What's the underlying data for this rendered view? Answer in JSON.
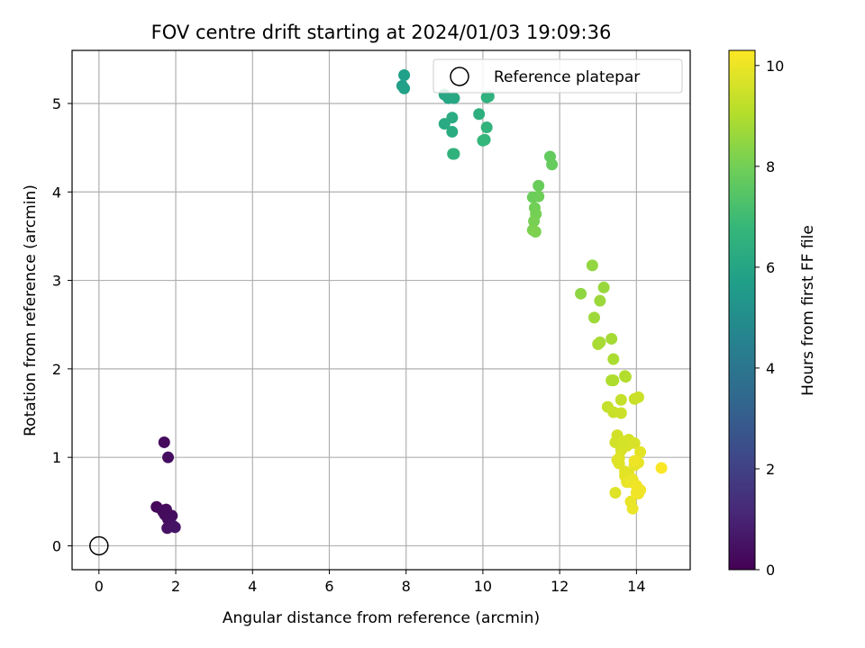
{
  "chart_data": {
    "type": "scatter",
    "title": "FOV centre drift starting at 2024/01/03 19:09:36",
    "xlabel": "Angular distance from reference (arcmin)",
    "ylabel": "Rotation from reference (arcmin)",
    "xlim": [
      -0.7,
      15.4
    ],
    "ylim": [
      -0.27,
      5.6
    ],
    "xticks": [
      0,
      2,
      4,
      6,
      8,
      10,
      12,
      14
    ],
    "yticks": [
      0,
      1,
      2,
      3,
      4,
      5
    ],
    "grid": true,
    "legend": {
      "position": "top-right",
      "entries": [
        "Reference platepar"
      ]
    },
    "reference": {
      "name": "Reference platepar",
      "x": 0,
      "y": 0
    },
    "colorbar": {
      "label": "Hours from first FF file",
      "range": [
        0,
        10.3
      ],
      "ticks": [
        0,
        2,
        4,
        6,
        8,
        10
      ],
      "colormap": "viridis",
      "colors": [
        "#440154",
        "#482878",
        "#3e4989",
        "#31688e",
        "#26828e",
        "#1f9e89",
        "#35b779",
        "#6ece58",
        "#b5de2b",
        "#fde725"
      ]
    },
    "series": [
      {
        "x": [
          1.7,
          1.8,
          1.5,
          1.65,
          1.75,
          1.9,
          1.8,
          1.85,
          1.95,
          1.78,
          1.68,
          1.98,
          1.72
        ],
        "y": [
          1.17,
          1.0,
          0.44,
          0.4,
          0.41,
          0.34,
          0.3,
          0.26,
          0.22,
          0.2,
          0.38,
          0.21,
          0.35
        ],
        "hours": [
          0.3,
          0.35,
          0.2,
          0.25,
          0.3,
          0.35,
          0.4,
          0.45,
          0.5,
          0.5,
          0.28,
          0.55,
          0.32
        ]
      },
      {
        "x": [
          7.95,
          7.9,
          7.95,
          9.0,
          9.1,
          9.25,
          9.2,
          9.0,
          9.2,
          9.25,
          9.9,
          10.1,
          10.15,
          10.1,
          10.05,
          10.0,
          9.22
        ],
        "y": [
          5.32,
          5.2,
          5.17,
          5.1,
          5.06,
          5.06,
          4.84,
          4.77,
          4.68,
          4.43,
          4.88,
          5.07,
          5.08,
          4.73,
          4.59,
          4.58,
          4.43
        ],
        "hours": [
          5.8,
          5.8,
          5.85,
          6.1,
          6.1,
          6.2,
          6.3,
          6.25,
          6.35,
          6.6,
          6.5,
          6.6,
          6.6,
          6.7,
          6.75,
          6.8,
          6.65
        ]
      },
      {
        "x": [
          11.75,
          11.8,
          11.45,
          11.3,
          11.45,
          11.35,
          11.38,
          11.33,
          11.3,
          11.37
        ],
        "y": [
          4.4,
          4.31,
          4.07,
          3.94,
          3.95,
          3.82,
          3.75,
          3.67,
          3.57,
          3.55
        ],
        "hours": [
          7.8,
          7.85,
          7.9,
          7.95,
          8.0,
          8.05,
          8.1,
          8.15,
          8.2,
          8.25
        ]
      },
      {
        "x": [
          12.85,
          12.55,
          13.15,
          13.05,
          12.9,
          13.35,
          13.05,
          13.0,
          13.4,
          13.35,
          13.7,
          13.72,
          13.4
        ],
        "y": [
          3.17,
          2.85,
          2.92,
          2.77,
          2.58,
          2.34,
          2.3,
          2.28,
          2.11,
          1.87,
          1.92,
          1.91,
          1.87
        ],
        "hours": [
          8.6,
          8.55,
          8.7,
          8.75,
          8.8,
          8.9,
          8.9,
          8.95,
          9.0,
          9.05,
          9.1,
          9.1,
          9.05
        ],
        "_ignore": null
      },
      {
        "x": [
          13.6,
          13.95,
          14.05,
          13.25,
          13.4,
          13.6,
          13.5,
          13.45,
          13.8,
          13.95,
          13.6,
          13.55,
          13.5,
          13.55,
          14.1,
          13.7,
          13.8,
          14.05,
          13.95,
          13.7,
          13.75,
          13.9,
          14.0,
          13.45,
          13.85,
          13.9,
          14.0,
          14.1,
          14.05,
          14.65,
          13.75,
          13.65,
          13.85,
          13.95,
          14.0
        ],
        "y": [
          1.65,
          1.66,
          1.68,
          1.57,
          1.51,
          1.5,
          1.25,
          1.17,
          1.2,
          1.16,
          1.08,
          0.99,
          0.97,
          0.93,
          1.06,
          0.84,
          0.81,
          0.94,
          0.91,
          0.79,
          0.72,
          0.75,
          0.68,
          0.6,
          0.5,
          0.42,
          0.6,
          0.63,
          0.59,
          0.88,
          1.13,
          1.18,
          0.72,
          0.96,
          0.68
        ],
        "hours": [
          9.4,
          9.45,
          9.5,
          9.4,
          9.45,
          9.5,
          9.6,
          9.6,
          9.65,
          9.7,
          9.7,
          9.75,
          9.8,
          9.8,
          9.9,
          9.85,
          9.85,
          9.95,
          9.95,
          9.9,
          9.95,
          10.0,
          10.05,
          9.8,
          10.0,
          10.0,
          10.1,
          10.1,
          10.1,
          10.25,
          9.7,
          9.65,
          10.0,
          10.05,
          10.1
        ]
      }
    ]
  }
}
